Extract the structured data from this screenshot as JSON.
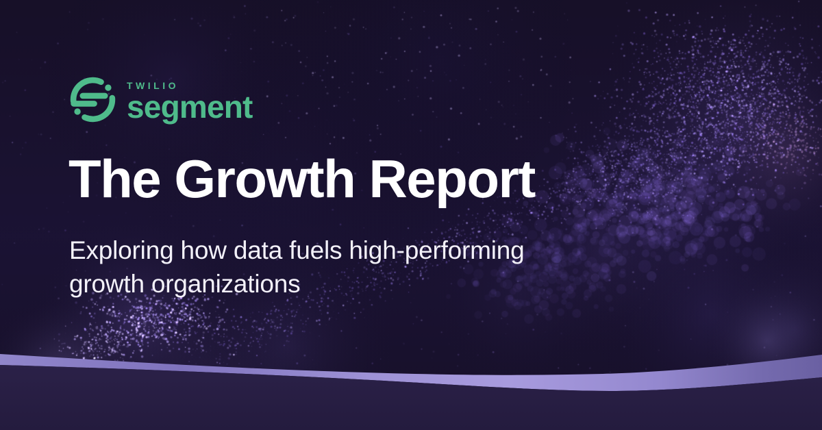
{
  "brand": {
    "company": "TWILIO",
    "product": "segment"
  },
  "hero": {
    "title": "The Growth Report",
    "subtitle_lines": [
      "Exploring how data fuels high-performing",
      "growth organizations"
    ]
  },
  "colors": {
    "background": "#191130",
    "accent_green": "#4FBB8B",
    "ribbon_lavender": "#A89BDE",
    "footer_purple": "#2A2047",
    "title_text": "#FFFFFF"
  }
}
